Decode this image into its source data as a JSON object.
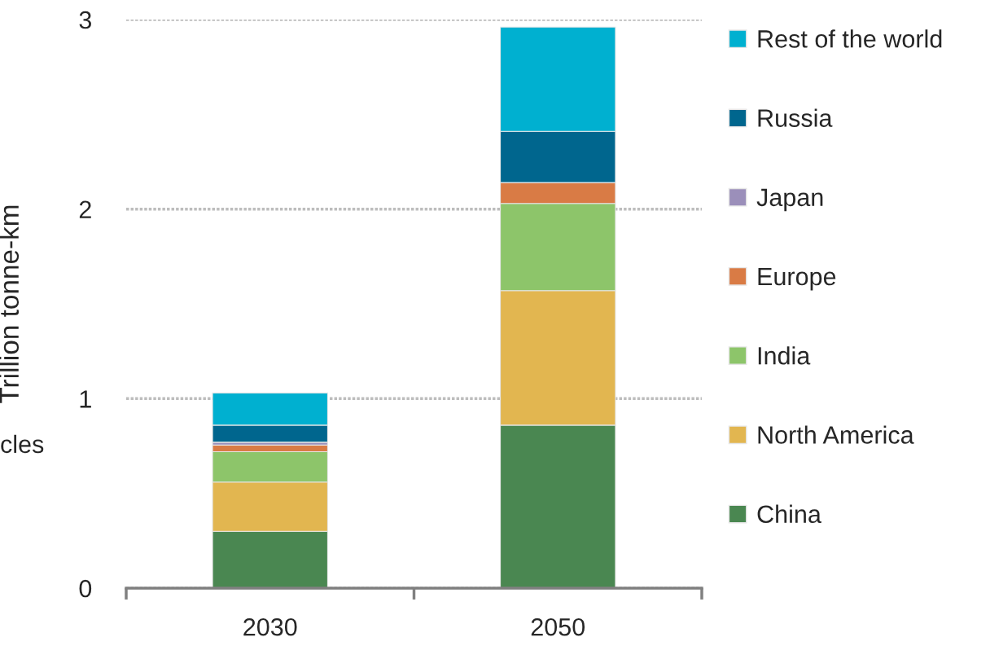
{
  "chart_data": {
    "type": "bar",
    "stacked": true,
    "ylabel": "Trillion tonne-km",
    "categories": [
      "2030",
      "2050"
    ],
    "series": [
      {
        "name": "China",
        "color": "#4a8751",
        "values": [
          0.3,
          0.86
        ]
      },
      {
        "name": "North America",
        "color": "#e2b650",
        "values": [
          0.26,
          0.71
        ]
      },
      {
        "name": "India",
        "color": "#8dc56a",
        "values": [
          0.16,
          0.46
        ]
      },
      {
        "name": "Europe",
        "color": "#d97b45",
        "values": [
          0.035,
          0.11
        ]
      },
      {
        "name": "Japan",
        "color": "#9b8fba",
        "values": [
          0.015,
          0.0
        ]
      },
      {
        "name": "Russia",
        "color": "#00668e",
        "values": [
          0.09,
          0.27
        ]
      },
      {
        "name": "Rest of the world",
        "color": "#00b0d0",
        "values": [
          0.17,
          0.55
        ]
      }
    ],
    "ylim": [
      0,
      3
    ],
    "yticks": [
      0,
      1,
      2,
      3
    ],
    "grid": "y",
    "legend": "right",
    "annotations": [
      "cles"
    ]
  }
}
